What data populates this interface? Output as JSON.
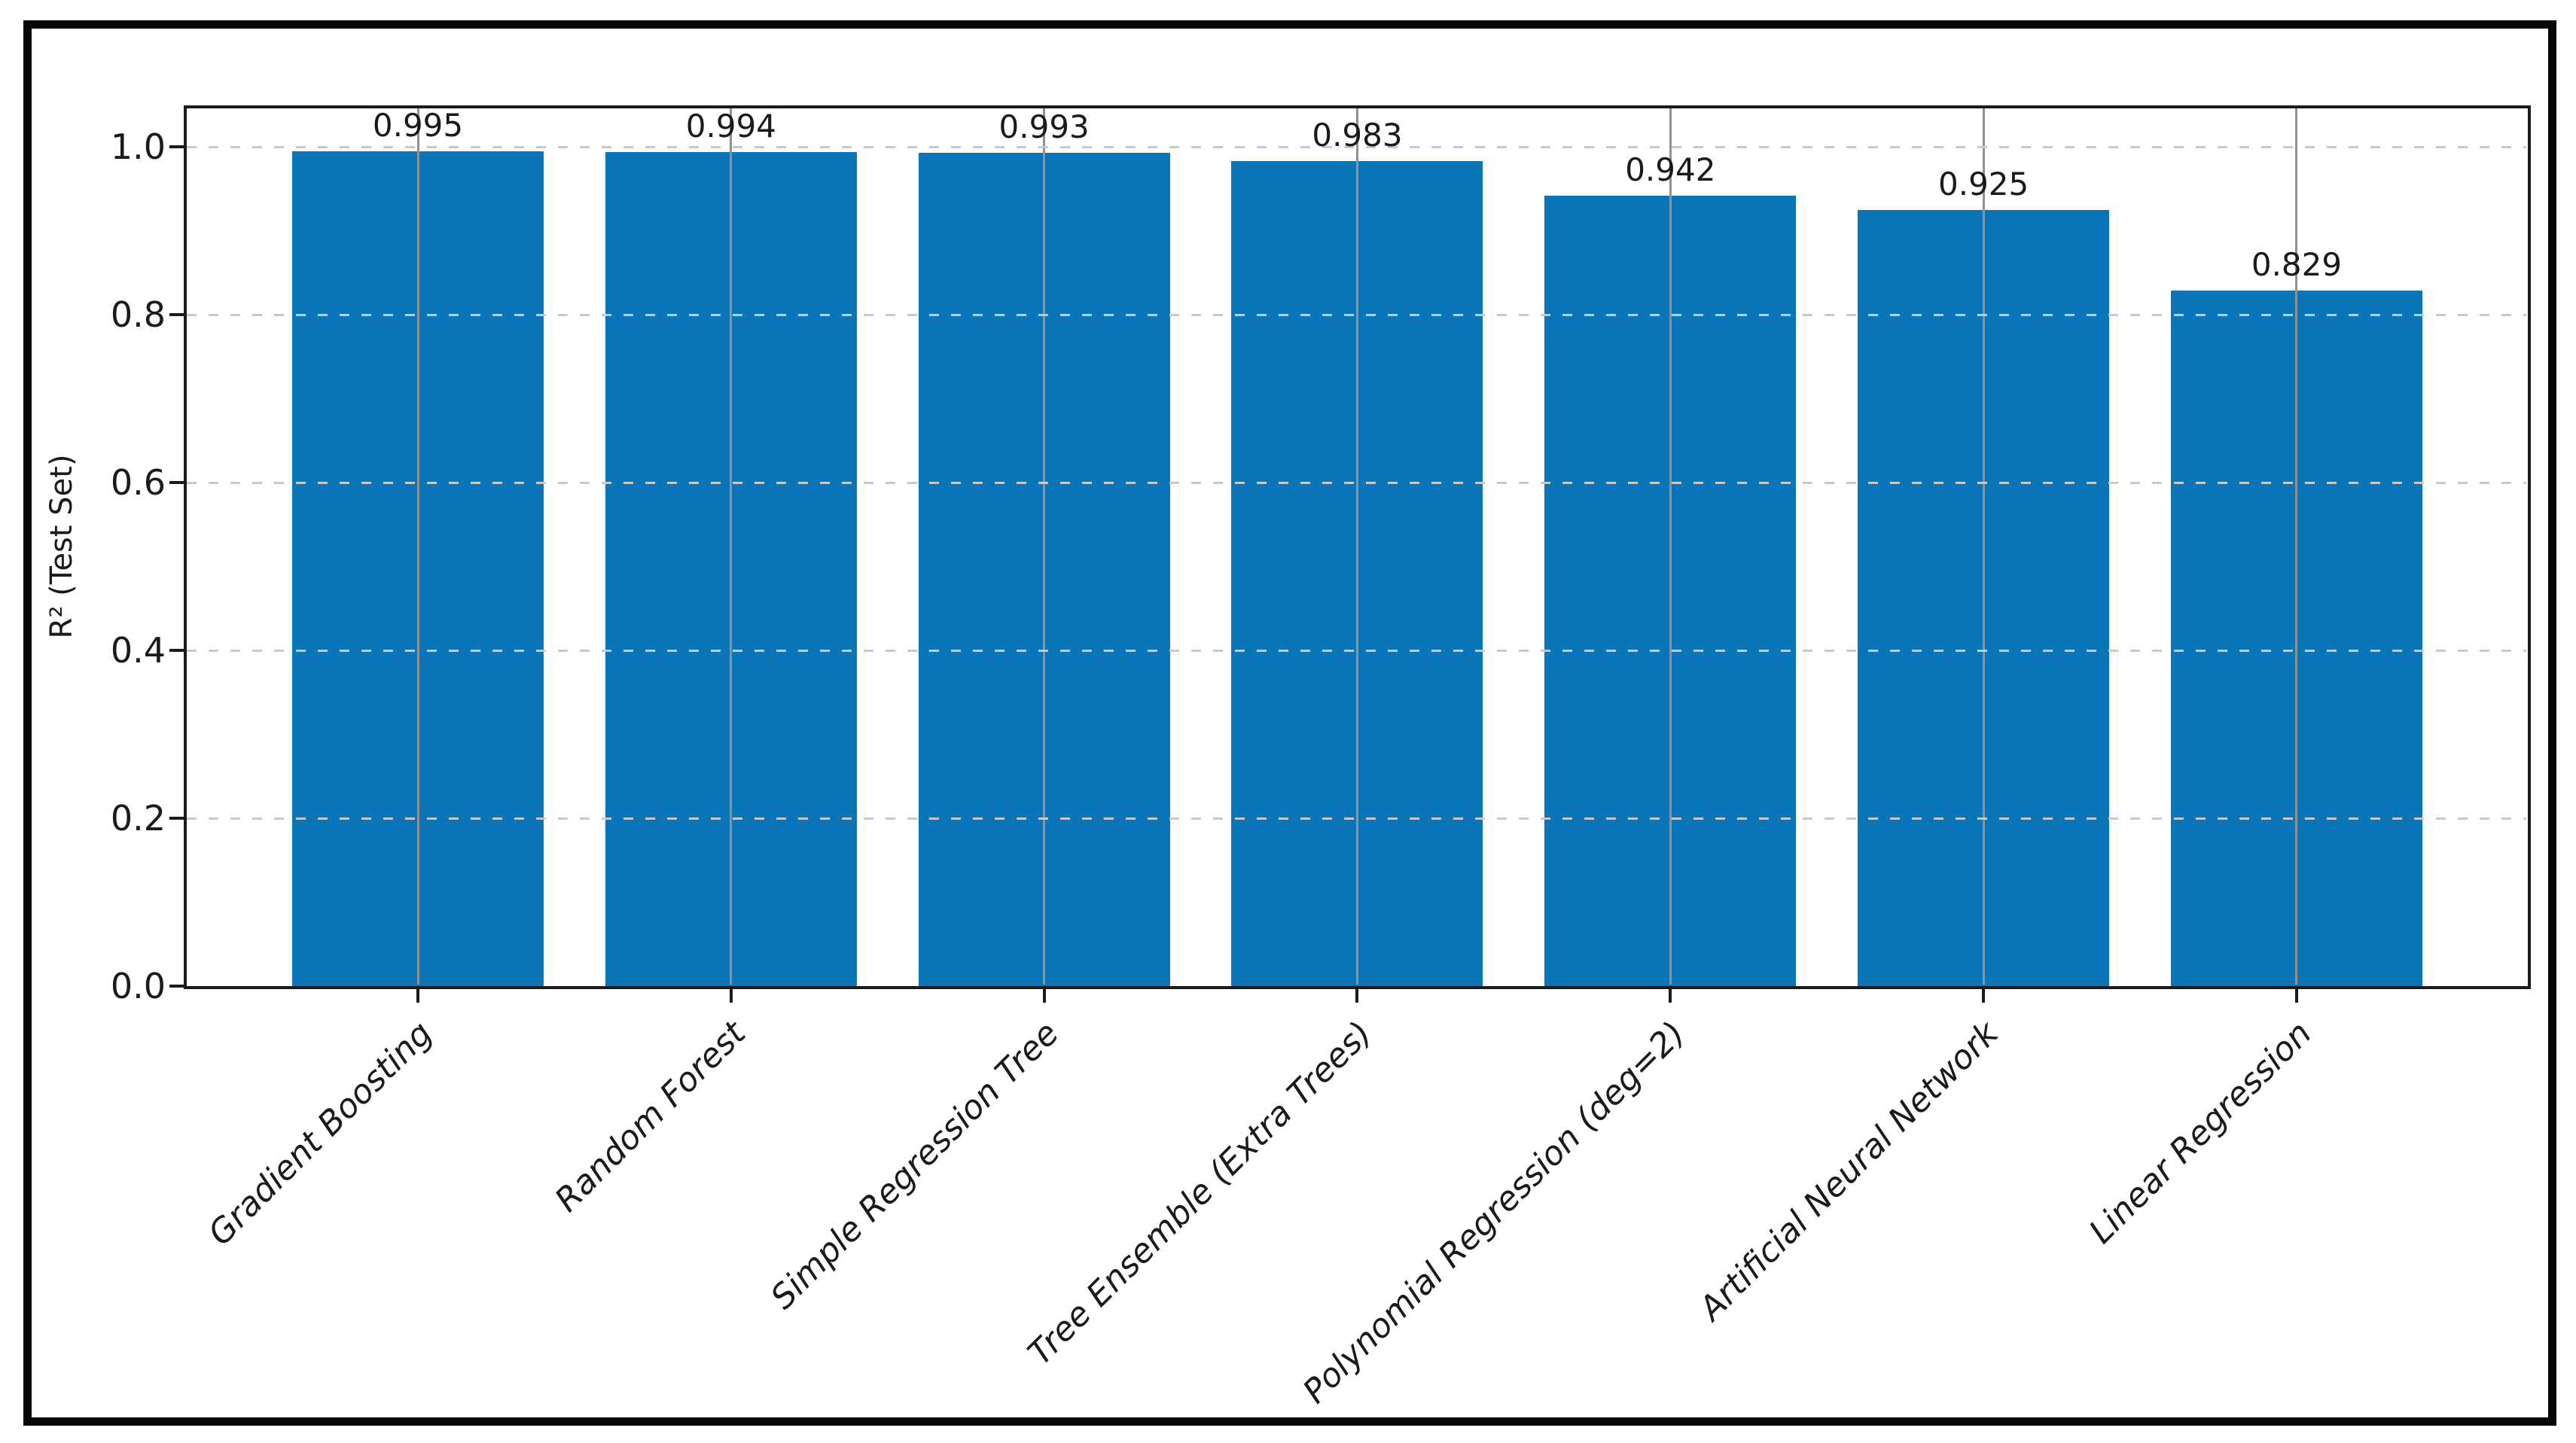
{
  "figure": {
    "frame_color": "#060606",
    "background": "#ffffff",
    "text_color": "#1a1a1a"
  },
  "chart_data": {
    "type": "bar",
    "title": "",
    "xlabel": "",
    "ylabel": "R² (Test Set)",
    "categories": [
      "Gradient Boosting",
      "Random Forest",
      "Simple Regression Tree",
      "Tree Ensemble (Extra Trees)",
      "Polynomial Regression (deg=2)",
      "Artificial Neural Network",
      "Linear Regression"
    ],
    "values": [
      0.995,
      0.994,
      0.993,
      0.983,
      0.942,
      0.925,
      0.829
    ],
    "value_labels": [
      "0.995",
      "0.994",
      "0.993",
      "0.983",
      "0.942",
      "0.925",
      "0.829"
    ],
    "yticks": [
      0.0,
      0.2,
      0.4,
      0.6,
      0.8,
      1.0
    ],
    "ytick_labels": [
      "0.0",
      "0.2",
      "0.4",
      "0.6",
      "0.8",
      "1.0"
    ],
    "ylim": [
      0,
      1.048
    ],
    "bar_color": "#0b75ba",
    "grid": {
      "horizontal_style": "dashed",
      "horizontal_color": "#c9c9c9",
      "vertical_style": "solid",
      "vertical_color": "#919191",
      "drawn_above_bars": true
    },
    "legend": "none",
    "xtick_label_style": {
      "rotation_deg": 45,
      "italic": true,
      "h_align": "right"
    }
  }
}
